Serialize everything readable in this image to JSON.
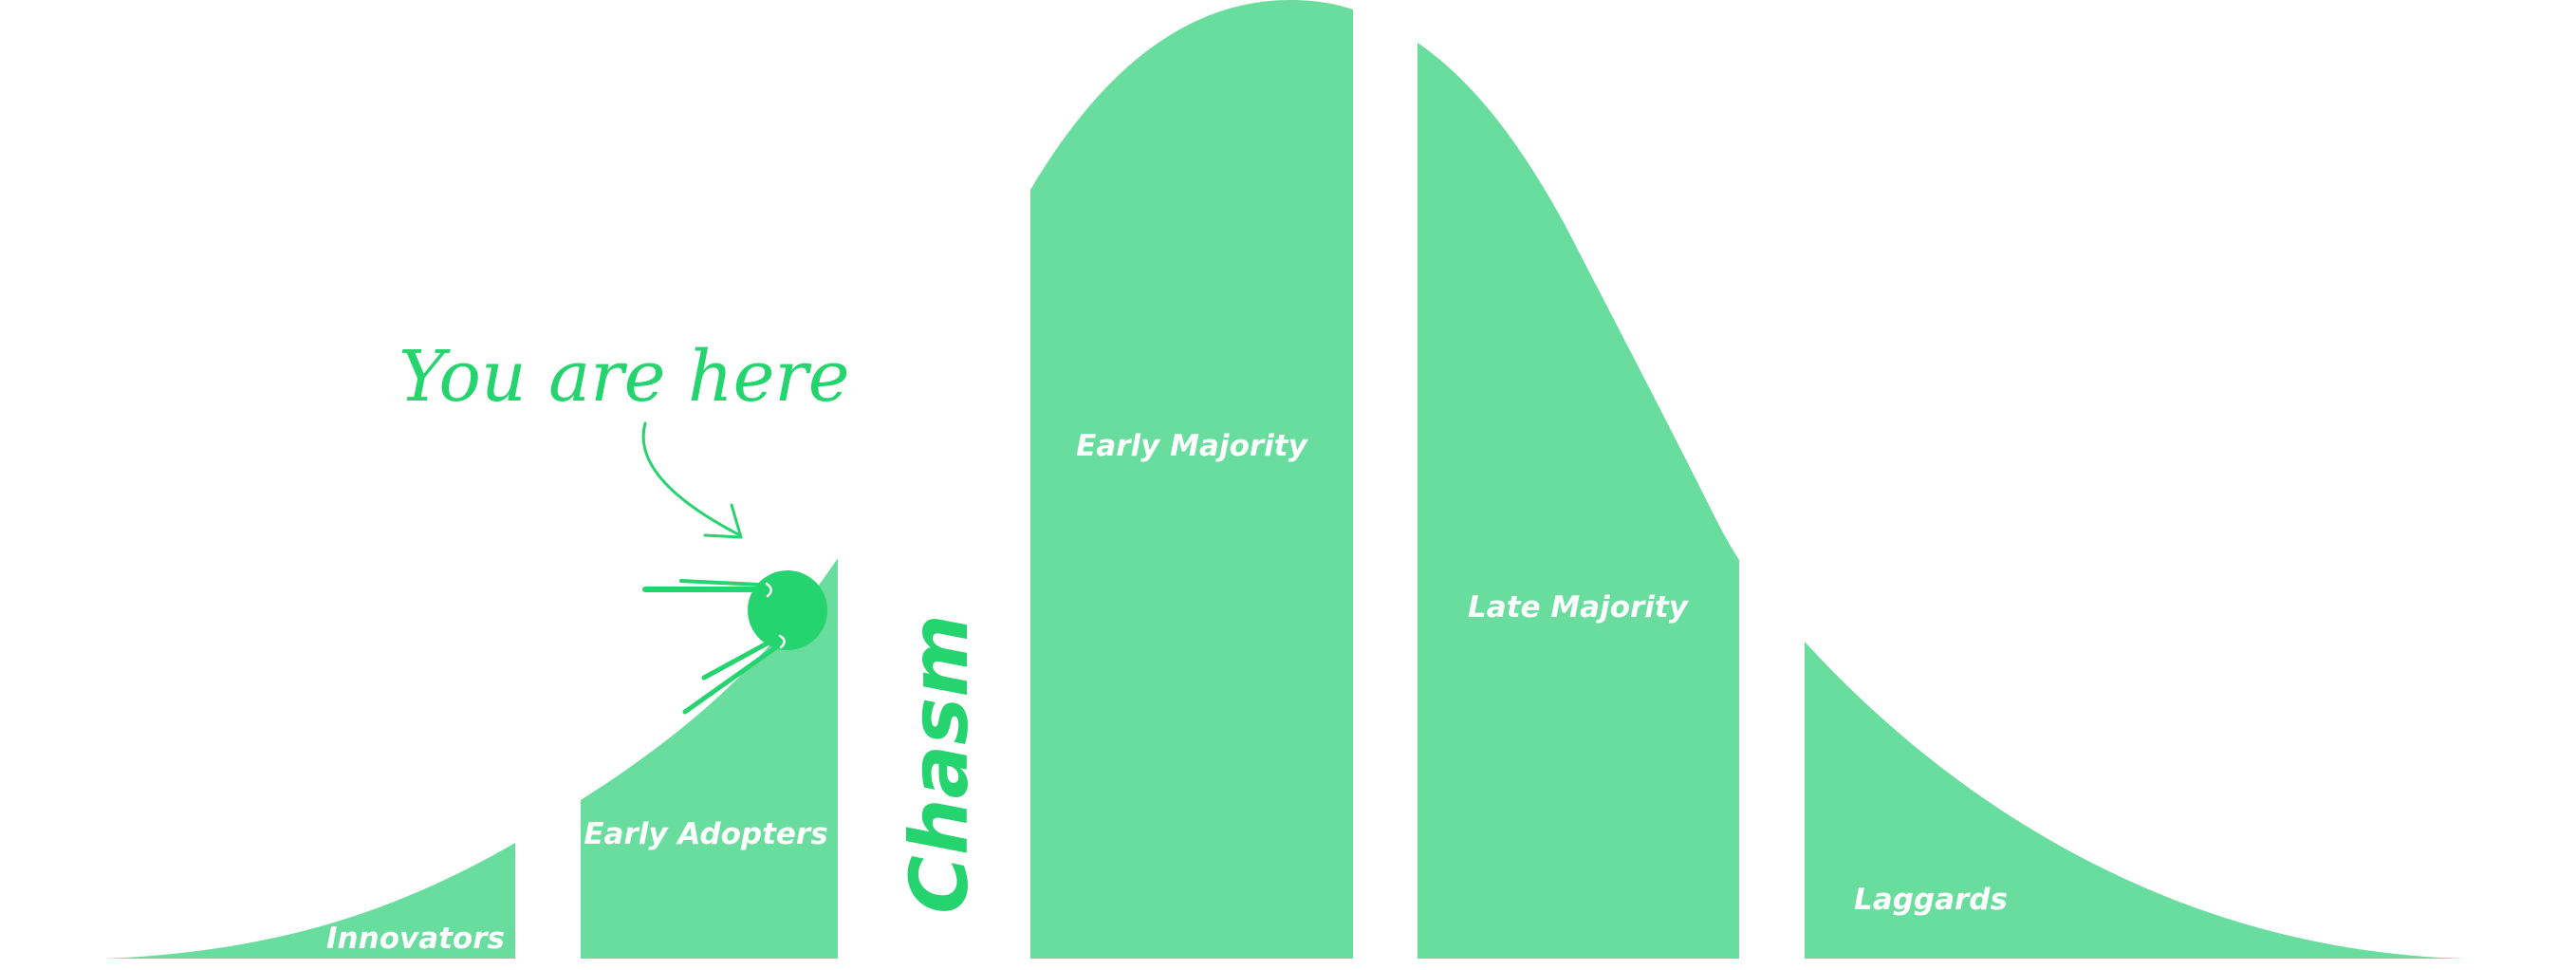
{
  "colors": {
    "segment_fill": "#68dd9d",
    "accent": "#25d36f",
    "background": "#ffffff",
    "label_text": "#ffffff"
  },
  "segments": [
    {
      "id": "innovators",
      "label": "Innovators"
    },
    {
      "id": "early-adopters",
      "label": "Early Adopters"
    },
    {
      "id": "early-majority",
      "label": "Early Majority"
    },
    {
      "id": "late-majority",
      "label": "Late Majority"
    },
    {
      "id": "laggards",
      "label": "Laggards"
    }
  ],
  "chasm": {
    "label": "Chasm"
  },
  "callout": {
    "text": "You are here",
    "marker_icon": "ball-marker-icon"
  }
}
